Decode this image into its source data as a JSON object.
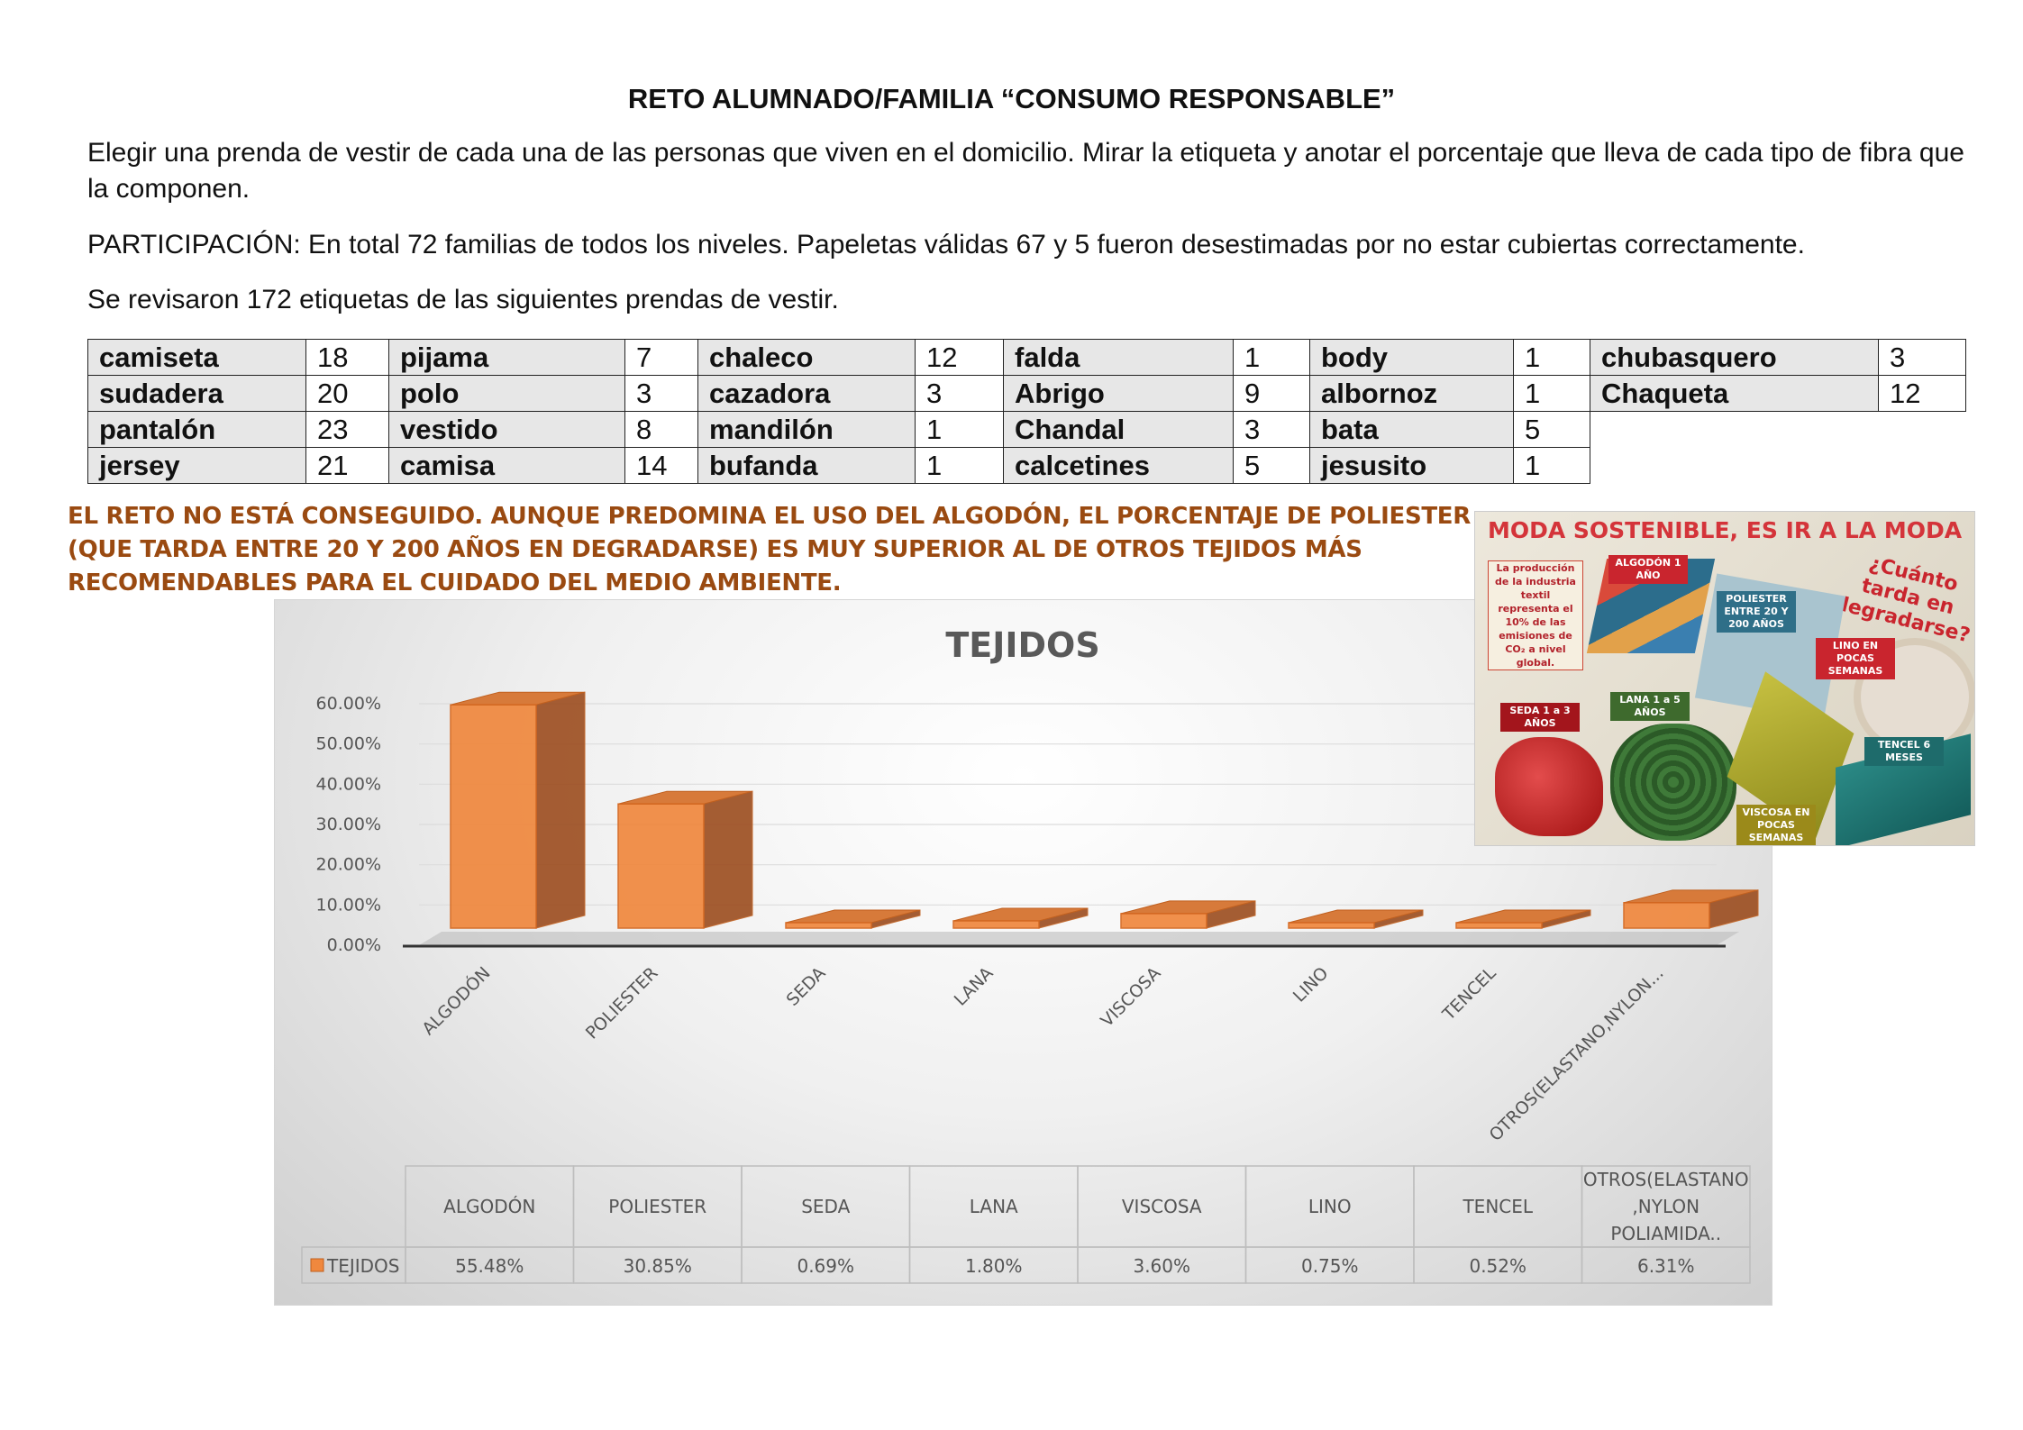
{
  "doc": {
    "title": "RETO ALUMNADO/FAMILIA “CONSUMO RESPONSABLE”",
    "intro": "Elegir una prenda de vestir de cada una de las personas que viven en el domicilio.  Mirar la etiqueta y anotar el porcentaje que lleva de cada tipo de fibra que la componen.",
    "participation": "PARTICIPACIÓN: En total 72 familias de todos los niveles. Papeletas válidas 67 y 5 fueron desestimadas por no estar cubiertas correctamente.",
    "reviewed": "Se revisaron 172 etiquetas de las siguientes prendas de vestir.",
    "verdict": "EL RETO NO ESTÁ CONSEGUIDO. AUNQUE PREDOMINA EL USO DEL ALGODÓN, EL PORCENTAJE DE POLIESTER (QUE TARDA ENTRE 20 Y 200 AÑOS EN DEGRADARSE) ES MUY SUPERIOR AL DE OTROS TEJIDOS MÁS RECOMENDABLES PARA EL CUIDADO DEL MEDIO AMBIENTE."
  },
  "garments": [
    [
      {
        "name": "camiseta",
        "count": "18"
      },
      {
        "name": "pijama",
        "count": "7"
      },
      {
        "name": "chaleco",
        "count": "12"
      },
      {
        "name": "falda",
        "count": "1"
      },
      {
        "name": "body",
        "count": "1"
      },
      {
        "name": "chubasquero",
        "count": "3"
      }
    ],
    [
      {
        "name": "sudadera",
        "count": "20"
      },
      {
        "name": "polo",
        "count": "3"
      },
      {
        "name": "cazadora",
        "count": "3"
      },
      {
        "name": "Abrigo",
        "count": "9"
      },
      {
        "name": "albornoz",
        "count": "1"
      },
      {
        "name": "Chaqueta",
        "count": "12"
      }
    ],
    [
      {
        "name": "pantalón",
        "count": "23"
      },
      {
        "name": "vestido",
        "count": "8"
      },
      {
        "name": "mandilón",
        "count": "1"
      },
      {
        "name": "Chandal",
        "count": "3"
      },
      {
        "name": "bata",
        "count": "5"
      }
    ],
    [
      {
        "name": "jersey",
        "count": "21"
      },
      {
        "name": "camisa",
        "count": "14"
      },
      {
        "name": "bufanda",
        "count": "1"
      },
      {
        "name": "calcetines",
        "count": "5"
      },
      {
        "name": "jesusito",
        "count": "1"
      }
    ]
  ],
  "chart_data": {
    "type": "bar",
    "title": "TEJIDOS",
    "categories": [
      "ALGODÓN",
      "POLIESTER",
      "SEDA",
      "LANA",
      "VISCOSA",
      "LINO",
      "TENCEL",
      "OTROS(ELASTANO,NYLON POLIAMIDA.."
    ],
    "axis_categories": [
      "ALGODÓN",
      "POLIESTER",
      "SEDA",
      "LANA",
      "VISCOSA",
      "LINO",
      "TENCEL",
      "OTROS(ELASTANO,NYLON..."
    ],
    "table_headers": [
      "ALGODÓN",
      "POLIESTER",
      "SEDA",
      "LANA",
      "VISCOSA",
      "LINO",
      "TENCEL",
      "OTROS(ELASTANO ,NYLON POLIAMIDA.."
    ],
    "series": [
      {
        "name": "TEJIDOS",
        "values": [
          55.48,
          30.85,
          0.69,
          1.8,
          3.6,
          0.75,
          0.52,
          6.31
        ],
        "labels": [
          "55.48%",
          "30.85%",
          "0.69%",
          "1.80%",
          "3.60%",
          "0.75%",
          "0.52%",
          "6.31%"
        ]
      }
    ],
    "yticks": [
      "0.00%",
      "10.00%",
      "20.00%",
      "30.00%",
      "40.00%",
      "50.00%",
      "60.00%"
    ],
    "ylim": [
      0,
      60
    ],
    "color": "#f0883e",
    "style": "3d-column",
    "data_table": true,
    "grid": true
  },
  "poster": {
    "title": "MODA SOSTENIBLE, ES IR A LA MODA",
    "question": "¿Cuánto tarda en degradarse?",
    "note": "La producción de la industria textil representa el 10% de las emisiones de CO₂ a nivel global.",
    "tags": [
      {
        "text": "ALGODÓN 1 AÑO",
        "color": "#c9252e"
      },
      {
        "text": "POLIESTER ENTRE 20 Y 200 AÑOS",
        "color": "#2f6f88"
      },
      {
        "text": "LINO EN POCAS SEMANAS",
        "color": "#c9252e"
      },
      {
        "text": "SEDA 1 a 3 AÑOS",
        "color": "#a3151c"
      },
      {
        "text": "LANA 1 a 5 AÑOS",
        "color": "#3e6a2d"
      },
      {
        "text": "VISCOSA EN POCAS SEMANAS",
        "color": "#9b8a1a"
      },
      {
        "text": "TENCEL 6 MESES",
        "color": "#1e6b6b"
      }
    ]
  }
}
